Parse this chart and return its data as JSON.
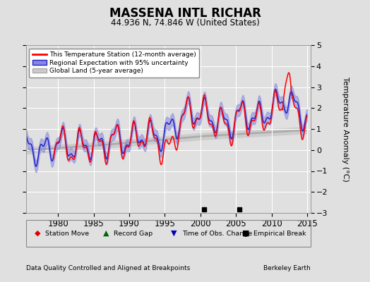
{
  "title": "MASSENA INTL RICHAR",
  "subtitle": "44.936 N, 74.846 W (United States)",
  "ylabel": "Temperature Anomaly (°C)",
  "xlabel_left": "Data Quality Controlled and Aligned at Breakpoints",
  "xlabel_right": "Berkeley Earth",
  "xlim": [
    1975.5,
    2015.5
  ],
  "ylim": [
    -3,
    5
  ],
  "yticks": [
    -3,
    -2,
    -1,
    0,
    1,
    2,
    3,
    4,
    5
  ],
  "xticks": [
    1980,
    1985,
    1990,
    1995,
    2000,
    2005,
    2010,
    2015
  ],
  "background_color": "#e0e0e0",
  "plot_bg_color": "#e0e0e0",
  "grid_color": "#ffffff",
  "empirical_break_years": [
    2000.5,
    2005.5
  ],
  "station_line_color": "#ff0000",
  "regional_line_color": "#2222cc",
  "regional_fill_color": "#8888dd",
  "global_line_color": "#aaaaaa",
  "global_fill_color": "#cccccc",
  "legend_station": "This Temperature Station (12-month average)",
  "legend_regional": "Regional Expectation with 95% uncertainty",
  "legend_global": "Global Land (5-year average)"
}
